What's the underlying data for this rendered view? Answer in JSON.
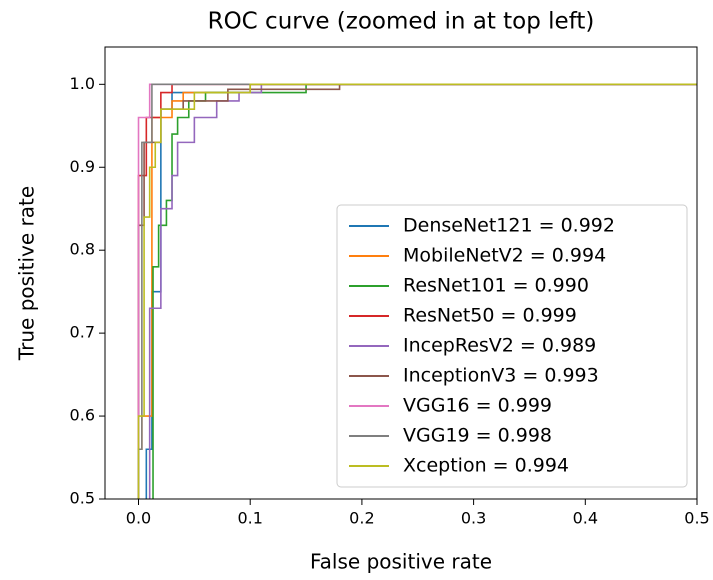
{
  "chart_data": {
    "type": "line",
    "title": "ROC curve (zoomed in at top left)",
    "x_label": "False positive rate",
    "y_label": "True positive rate",
    "xlim": [
      -0.03,
      0.5
    ],
    "ylim": [
      0.5,
      1.045
    ],
    "xticks": [
      {
        "value": 0,
        "label": "0.0"
      },
      0.1,
      0.2,
      0.3,
      0.4,
      0.5
    ],
    "yticks": [
      0.5,
      0.6,
      0.7,
      0.8,
      0.9,
      {
        "value": 1,
        "label": "1.0"
      }
    ],
    "legend": "lower right",
    "series": [
      {
        "name": "DenseNet121 = 0.992",
        "color": "#1f77b4",
        "x": [
          0.007,
          0.007,
          0.012,
          0.012,
          0.02,
          0.02,
          0.03,
          0.03,
          0.1,
          0.1,
          0.5
        ],
        "values": [
          0.5,
          0.56,
          0.56,
          0.75,
          0.75,
          0.97,
          0.97,
          0.99,
          0.99,
          1.0,
          1.0
        ]
      },
      {
        "name": "MobileNetV2 = 0.994",
        "color": "#ff7f0e",
        "x": [
          0,
          0,
          0.003,
          0.003,
          0.012,
          0.012,
          0.03,
          0.03,
          0.04,
          0.04,
          0.1,
          0.1,
          0.5
        ],
        "values": [
          0.5,
          0.56,
          0.56,
          0.6,
          0.6,
          0.96,
          0.96,
          0.98,
          0.98,
          0.99,
          0.99,
          1.0,
          1.0
        ]
      },
      {
        "name": "ResNet101 = 0.990",
        "color": "#2ca02c",
        "x": [
          0.013,
          0.013,
          0.018,
          0.018,
          0.025,
          0.025,
          0.03,
          0.03,
          0.035,
          0.035,
          0.045,
          0.045,
          0.06,
          0.06,
          0.15,
          0.15,
          0.5
        ],
        "values": [
          0.5,
          0.78,
          0.78,
          0.83,
          0.83,
          0.86,
          0.86,
          0.94,
          0.94,
          0.96,
          0.96,
          0.98,
          0.98,
          0.99,
          0.99,
          1.0,
          1.0
        ]
      },
      {
        "name": "ResNet50 = 0.999",
        "color": "#d62728",
        "x": [
          0,
          0,
          0.007,
          0.007,
          0.02,
          0.02,
          0.03,
          0.03,
          0.5
        ],
        "values": [
          0.5,
          0.89,
          0.89,
          0.96,
          0.96,
          0.99,
          0.99,
          1.0,
          1.0
        ]
      },
      {
        "name": "IncepResV2 = 0.989",
        "color": "#9467bd",
        "x": [
          0.01,
          0.01,
          0.02,
          0.02,
          0.03,
          0.03,
          0.035,
          0.035,
          0.05,
          0.05,
          0.07,
          0.07,
          0.09,
          0.09,
          0.11,
          0.11,
          0.5
        ],
        "values": [
          0.5,
          0.73,
          0.73,
          0.85,
          0.85,
          0.89,
          0.89,
          0.93,
          0.93,
          0.96,
          0.96,
          0.98,
          0.98,
          0.99,
          0.99,
          1.0,
          1.0
        ]
      },
      {
        "name": "InceptionV3 = 0.993",
        "color": "#8c564b",
        "x": [
          0,
          0,
          0.005,
          0.005,
          0.02,
          0.02,
          0.04,
          0.04,
          0.08,
          0.08,
          0.18,
          0.18,
          0.5
        ],
        "values": [
          0.5,
          0.83,
          0.83,
          0.93,
          0.93,
          0.97,
          0.97,
          0.98,
          0.98,
          0.994,
          0.994,
          1.0,
          1.0
        ]
      },
      {
        "name": "VGG16 = 0.999",
        "color": "#e377c2",
        "x": [
          0,
          0,
          0.01,
          0.01,
          0.5
        ],
        "values": [
          0.5,
          0.96,
          0.96,
          1.0,
          1.0
        ]
      },
      {
        "name": "VGG19 = 0.998",
        "color": "#7f7f7f",
        "x": [
          0,
          0,
          0.003,
          0.003,
          0.012,
          0.012,
          0.5
        ],
        "values": [
          0.5,
          0.56,
          0.56,
          0.93,
          0.93,
          1.0,
          1.0
        ]
      },
      {
        "name": "Xception = 0.994",
        "color": "#bcbd22",
        "x": [
          0,
          0,
          0.005,
          0.005,
          0.01,
          0.01,
          0.015,
          0.015,
          0.02,
          0.02,
          0.05,
          0.05,
          0.1,
          0.1,
          0.5
        ],
        "values": [
          0.5,
          0.6,
          0.6,
          0.84,
          0.84,
          0.9,
          0.9,
          0.93,
          0.93,
          0.97,
          0.97,
          0.99,
          0.99,
          1.0,
          1.0
        ]
      }
    ]
  }
}
